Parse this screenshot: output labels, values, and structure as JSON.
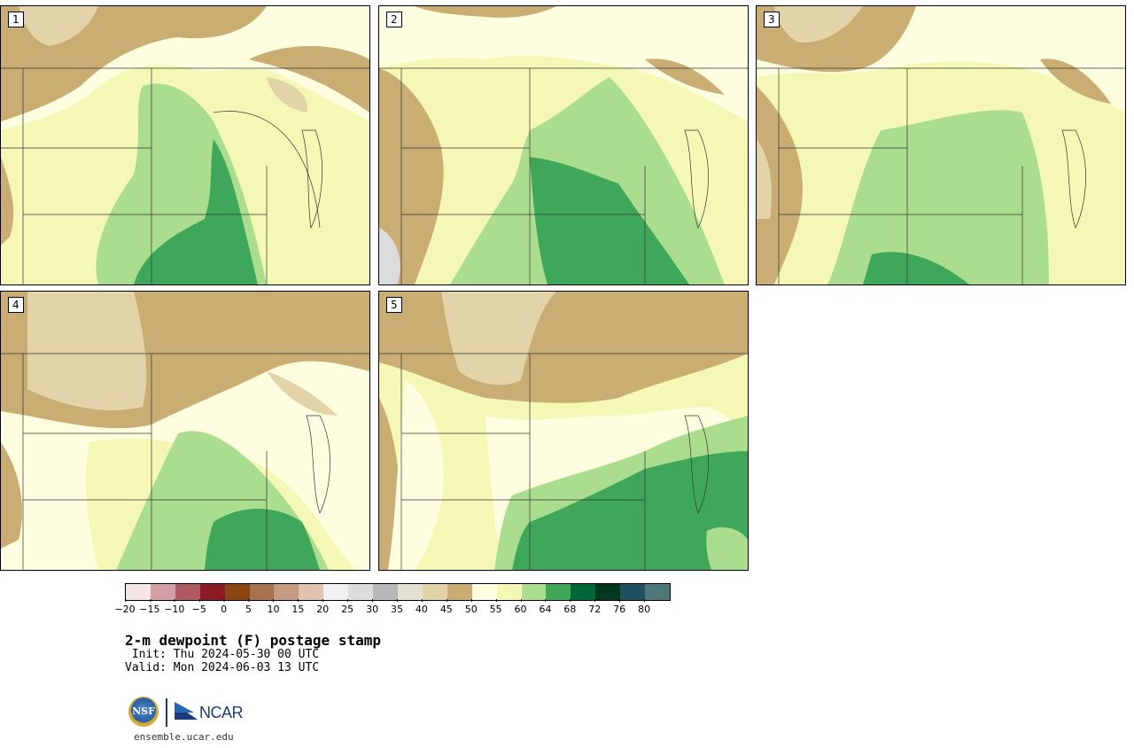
{
  "panels": [
    {
      "label": "1"
    },
    {
      "label": "2"
    },
    {
      "label": "3"
    },
    {
      "label": "4"
    },
    {
      "label": "5"
    }
  ],
  "colorbar": {
    "colors": [
      "#f5e6e6",
      "#d4a0a5",
      "#b05a63",
      "#8b1a24",
      "#8b4513",
      "#a8724e",
      "#c49a80",
      "#dfc3b1",
      "#f0f0f0",
      "#dcdcdc",
      "#b8b8b8",
      "#e3e0d0",
      "#e2d3a8",
      "#c9ad72",
      "#fdfde0",
      "#f4f8b4",
      "#abdd8f",
      "#3fa75a",
      "#006837",
      "#00391e",
      "#1f5160",
      "#4f7778"
    ],
    "tick_labels": [
      "−20",
      "−15",
      "−10",
      "−5",
      "0",
      "5",
      "10",
      "15",
      "20",
      "25",
      "30",
      "35",
      "40",
      "45",
      "50",
      "55",
      "60",
      "64",
      "68",
      "72",
      "76",
      "80"
    ]
  },
  "title": "2-m dewpoint (F) postage stamp",
  "init": " Init: Thu 2024-05-30 00 UTC",
  "valid": "Valid: Mon 2024-06-03 13 UTC",
  "logo": {
    "nsf": "NSF",
    "ncar": "NCAR"
  },
  "url": "ensemble.ucar.edu",
  "map_colors": {
    "dry_dark": "#c9ad72",
    "dry_light": "#e2d3a8",
    "pale": "#fdfde0",
    "yellow": "#f4f8b4",
    "light_green": "#abdd8f",
    "green": "#3fa75a",
    "gray": "#dcdcdc"
  }
}
